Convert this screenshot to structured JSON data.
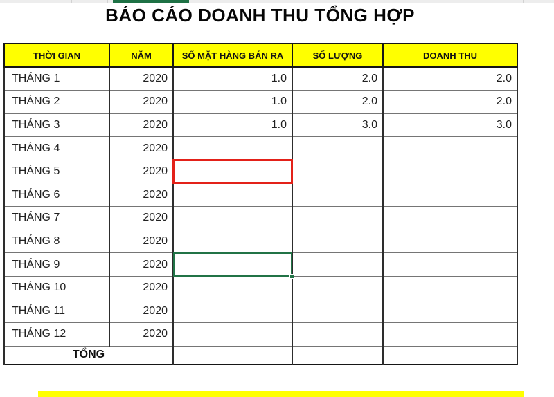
{
  "title": "BÁO CÁO DOANH THU TỔNG HỢP",
  "table": {
    "headers": {
      "time": "THỜI GIAN",
      "year": "NĂM",
      "items": "SỐ MẶT HÀNG BÁN RA",
      "qty": "SỐ LƯỢNG",
      "revenue": "DOANH THU"
    },
    "rows": [
      {
        "time": "THÁNG 1",
        "year": "2020",
        "items": "1.0",
        "qty": "2.0",
        "revenue": "2.0"
      },
      {
        "time": "THÁNG 2",
        "year": "2020",
        "items": "1.0",
        "qty": "2.0",
        "revenue": "2.0"
      },
      {
        "time": "THÁNG 3",
        "year": "2020",
        "items": "1.0",
        "qty": "3.0",
        "revenue": "3.0"
      },
      {
        "time": "THÁNG 4",
        "year": "2020",
        "items": "",
        "qty": "",
        "revenue": ""
      },
      {
        "time": "THÁNG 5",
        "year": "2020",
        "items": "",
        "qty": "",
        "revenue": ""
      },
      {
        "time": "THÁNG 6",
        "year": "2020",
        "items": "",
        "qty": "",
        "revenue": ""
      },
      {
        "time": "THÁNG 7",
        "year": "2020",
        "items": "",
        "qty": "",
        "revenue": ""
      },
      {
        "time": "THÁNG 8",
        "year": "2020",
        "items": "",
        "qty": "",
        "revenue": ""
      },
      {
        "time": "THÁNG 9",
        "year": "2020",
        "items": "",
        "qty": "",
        "revenue": ""
      },
      {
        "time": "THÁNG 10",
        "year": "2020",
        "items": "",
        "qty": "",
        "revenue": ""
      },
      {
        "time": "THÁNG 11",
        "year": "2020",
        "items": "",
        "qty": "",
        "revenue": ""
      },
      {
        "time": "THÁNG 12",
        "year": "2020",
        "items": "",
        "qty": "",
        "revenue": ""
      }
    ],
    "total_label": "TỔNG",
    "colors": {
      "header_bg": "#ffff00",
      "red_highlight_border": "#e32119",
      "selection_green": "#217346",
      "top_strip_green": "#1e7145"
    }
  }
}
